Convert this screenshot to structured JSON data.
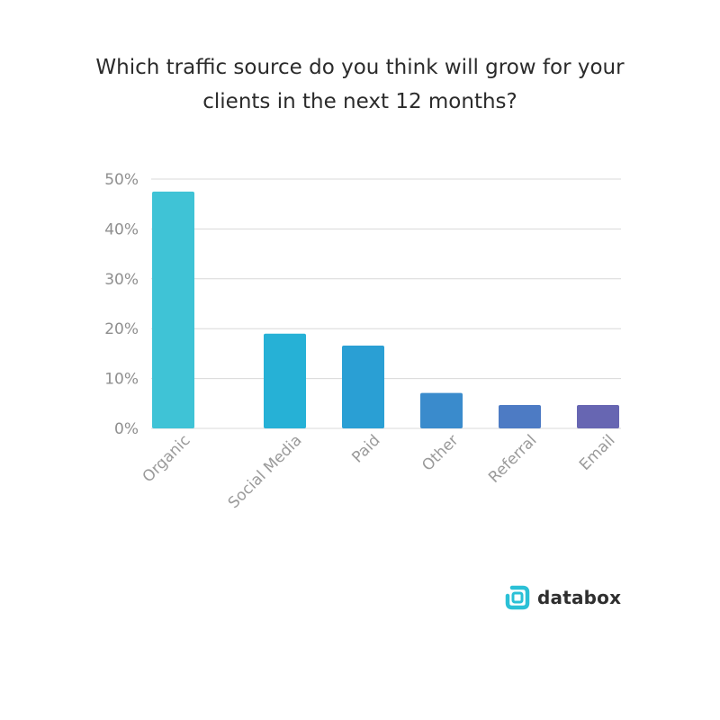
{
  "title_line1": "Which traffic source do you think will grow for your",
  "title_line2": "clients in the next 12 months?",
  "brand": {
    "name": "databox",
    "icon": "databox-logo-icon",
    "color": "#2bc0d6"
  },
  "chart_data": {
    "type": "bar",
    "title": "Which traffic source do you think will grow for your clients in the next 12 months?",
    "categories": [
      "Organic",
      "Social Media",
      "Paid",
      "Other",
      "Referral",
      "Email"
    ],
    "values": [
      47.5,
      19,
      16.6,
      7.1,
      4.7,
      4.7
    ],
    "colors": [
      "#3fc3d6",
      "#26b1d6",
      "#2a9fd4",
      "#3a8bcc",
      "#4d7bc4",
      "#6766b2"
    ],
    "ylim": [
      0,
      50
    ],
    "yticks": [
      "0%",
      "10%",
      "20%",
      "30%",
      "40%",
      "50%"
    ],
    "ytick_values": [
      0,
      10,
      20,
      30,
      40,
      50
    ],
    "grid": true,
    "xlabel": "",
    "ylabel": ""
  }
}
